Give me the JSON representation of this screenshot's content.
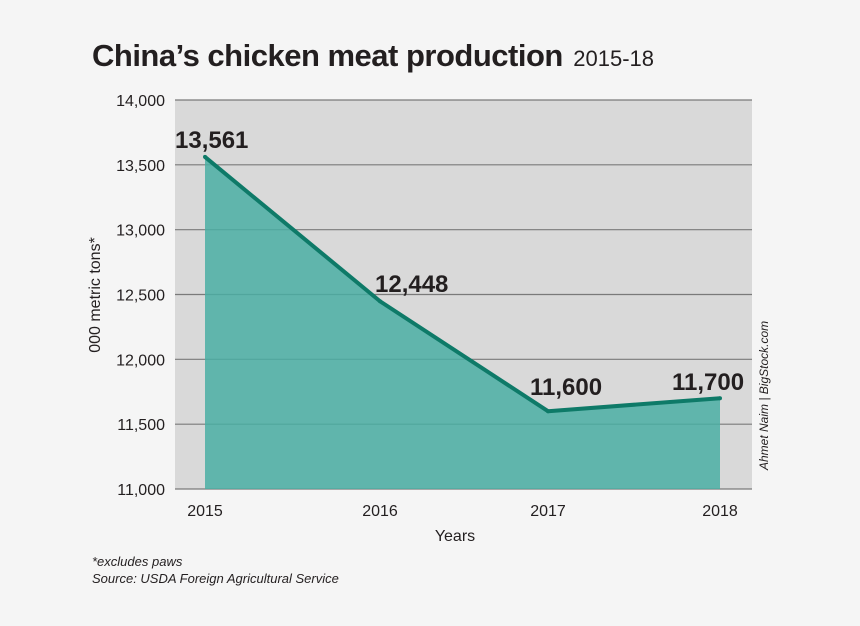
{
  "header": {
    "title": "China’s chicken meat production",
    "subtitle": "2015-18"
  },
  "credit": "Ahmet Naim | BigStock.com",
  "footnotes": {
    "note": "*excludes paws",
    "source": "Source: USDA Foreign Agricultural Service"
  },
  "colors": {
    "line": "#0e7a68",
    "area": "#4aaea3",
    "grid": "#7a7a7a",
    "plot_background": "#d9d9d9"
  },
  "chart_data": {
    "type": "area",
    "title": "China’s chicken meat production",
    "subtitle": "2015-18",
    "xlabel": "Years",
    "ylabel": "000 metric tons*",
    "categories": [
      "2015",
      "2016",
      "2017",
      "2018"
    ],
    "series": [
      {
        "values": [
          13561,
          12448,
          11600,
          11700
        ],
        "data_labels": [
          "13,561",
          "12,448",
          "11,600",
          "11,700"
        ]
      }
    ],
    "ylim": [
      11000,
      14000
    ],
    "yticks": [
      11000,
      11500,
      12000,
      12500,
      13000,
      13500,
      14000
    ],
    "ytick_labels": [
      "11,000",
      "11,500",
      "12,000",
      "12,500",
      "13,000",
      "13,500",
      "14,000"
    ],
    "grid": true,
    "legend": "none"
  }
}
